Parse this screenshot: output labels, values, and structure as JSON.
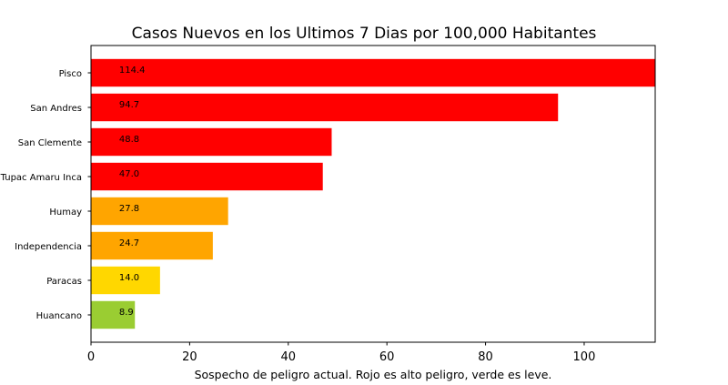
{
  "chart_data": {
    "type": "bar",
    "orientation": "horizontal",
    "title": "Casos Nuevos en los Ultimos 7 Dias por 100,000 Habitantes",
    "xlabel": "Sospecho de peligro actual. Rojo es alto peligro, verde es leve.",
    "ylabel": "",
    "categories": [
      "Pisco",
      "San Andres",
      "San Clemente",
      "Tupac Amaru Inca",
      "Humay",
      "Independencia",
      "Paracas",
      "Huancano"
    ],
    "values": [
      114.4,
      94.7,
      48.8,
      47.0,
      27.8,
      24.7,
      14.0,
      8.9
    ],
    "value_labels": [
      "114.4",
      "94.7",
      "48.8",
      "47.0",
      "27.8",
      "24.7",
      "14.0",
      "8.9"
    ],
    "colors": [
      "#ff0000",
      "#ff0000",
      "#ff0000",
      "#ff0000",
      "#ffa500",
      "#ffa500",
      "#ffd700",
      "#9acd32"
    ],
    "xlim": [
      0,
      114.4
    ],
    "xticks": [
      0,
      20,
      40,
      60,
      80,
      100
    ],
    "xtick_labels": [
      "0",
      "20",
      "40",
      "60",
      "80",
      "100"
    ],
    "grid": false,
    "legend": "none"
  }
}
